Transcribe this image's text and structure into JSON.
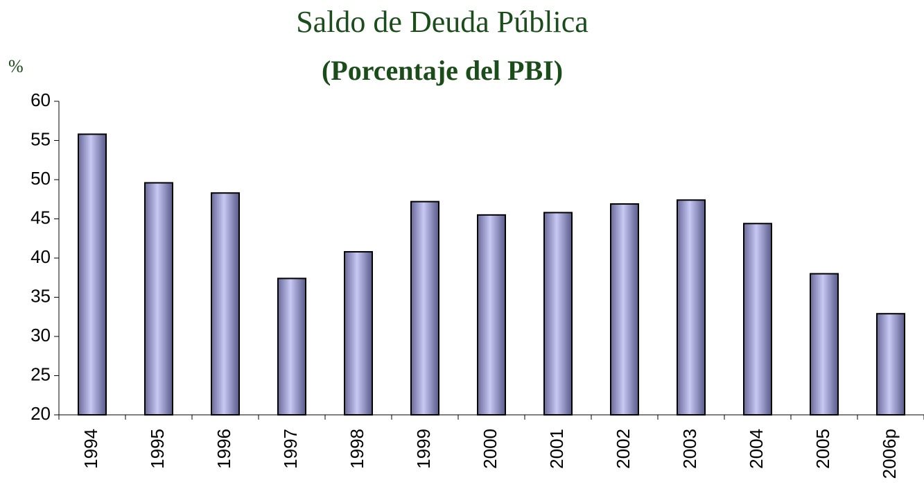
{
  "chart_data": {
    "type": "bar",
    "title": "Saldo de Deuda Pública",
    "subtitle": "(Porcentaje del PBI)",
    "y_label": "%",
    "categories": [
      "1994",
      "1995",
      "1996",
      "1997",
      "1998",
      "1999",
      "2000",
      "2001",
      "2002",
      "2003",
      "2004",
      "2005",
      "2006p"
    ],
    "values": [
      55.8,
      49.6,
      48.3,
      37.4,
      40.8,
      47.2,
      45.5,
      45.8,
      46.9,
      47.4,
      44.4,
      38.0,
      32.9
    ],
    "color": "#c8c8f4",
    "ylim": [
      20,
      60
    ],
    "yticks": [
      20,
      25,
      30,
      35,
      40,
      45,
      50,
      55,
      60
    ],
    "grid": false
  }
}
